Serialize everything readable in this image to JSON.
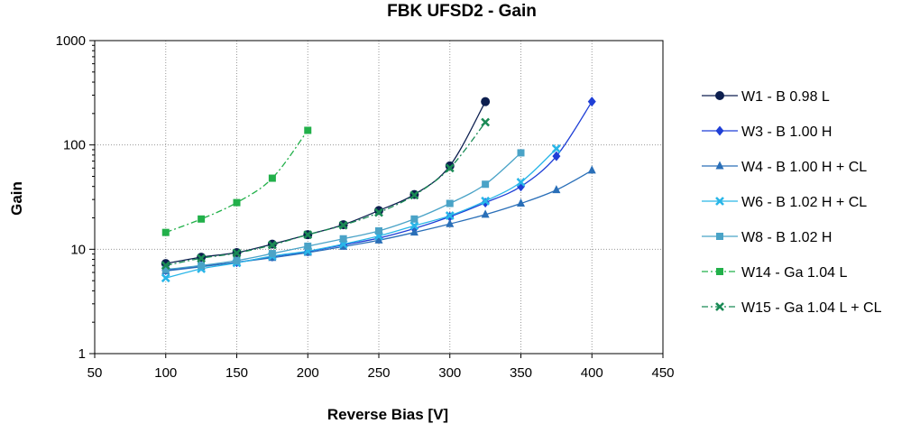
{
  "chart_data": {
    "type": "line",
    "title": "FBK UFSD2 - Gain",
    "xlabel": "Reverse Bias [V]",
    "ylabel": "Gain",
    "xlim": [
      50,
      450
    ],
    "ylim": [
      1,
      1000
    ],
    "yscale": "log",
    "x_ticks": [
      "50",
      "100",
      "150",
      "200",
      "250",
      "300",
      "350",
      "400",
      "450"
    ],
    "y_ticks": [
      "1",
      "10",
      "100",
      "1000"
    ],
    "grid": true,
    "legend_position": "right",
    "series": [
      {
        "name": "W1 - B 0.98 L",
        "color": "#0d1f4f",
        "marker": "circle",
        "dash": "solid",
        "x": [
          100,
          125,
          150,
          175,
          200,
          225,
          250,
          275,
          300,
          325
        ],
        "y": [
          7.3,
          8.4,
          9.3,
          11.2,
          13.8,
          17.2,
          23.5,
          33.5,
          63,
          260
        ]
      },
      {
        "name": "W3 - B 1.00 H",
        "color": "#1f3fd6",
        "marker": "diamond",
        "dash": "solid",
        "x": [
          100,
          125,
          150,
          175,
          200,
          225,
          250,
          275,
          300,
          325,
          350,
          375,
          400
        ],
        "y": [
          6.3,
          6.9,
          7.5,
          8.5,
          9.5,
          11.0,
          12.8,
          15.8,
          20.5,
          28,
          40,
          78,
          260
        ]
      },
      {
        "name": "W4 - B 1.00 H + CL",
        "color": "#2a6fb8",
        "marker": "triangle",
        "dash": "solid",
        "x": [
          100,
          125,
          150,
          175,
          200,
          225,
          250,
          275,
          300,
          325,
          350,
          375,
          400
        ],
        "y": [
          6.2,
          6.8,
          7.5,
          8.3,
          9.3,
          10.6,
          12.2,
          14.5,
          17.5,
          21.5,
          27.5,
          37,
          57
        ]
      },
      {
        "name": "W6 - B 1.02 H + CL",
        "color": "#29b6e8",
        "marker": "x",
        "dash": "solid",
        "x": [
          100,
          125,
          150,
          175,
          200,
          225,
          250,
          275,
          300,
          325,
          350,
          375
        ],
        "y": [
          5.3,
          6.5,
          7.4,
          8.6,
          9.6,
          11.2,
          13.4,
          16.8,
          21,
          29,
          44,
          92
        ]
      },
      {
        "name": "W8 - B 1.02 H",
        "color": "#4aa3c7",
        "marker": "square",
        "dash": "solid",
        "x": [
          100,
          125,
          150,
          175,
          200,
          225,
          250,
          275,
          300,
          325,
          350
        ],
        "y": [
          6.4,
          7.0,
          7.8,
          9.1,
          10.7,
          12.6,
          15.0,
          19.5,
          27.5,
          42,
          84
        ]
      },
      {
        "name": "W14 - Ga 1.04 L",
        "color": "#22b04a",
        "marker": "square",
        "dash": "dashdot",
        "x": [
          100,
          125,
          150,
          175,
          200
        ],
        "y": [
          14.5,
          19.5,
          28,
          48,
          138
        ]
      },
      {
        "name": "W15 - Ga 1.04 L + CL",
        "color": "#1a8a55",
        "marker": "x",
        "dash": "dashdot",
        "x": [
          100,
          125,
          150,
          175,
          200,
          225,
          250,
          275,
          300,
          325
        ],
        "y": [
          7.0,
          8.2,
          9.2,
          11.0,
          13.8,
          17.0,
          22.5,
          33,
          60,
          165
        ]
      }
    ]
  }
}
